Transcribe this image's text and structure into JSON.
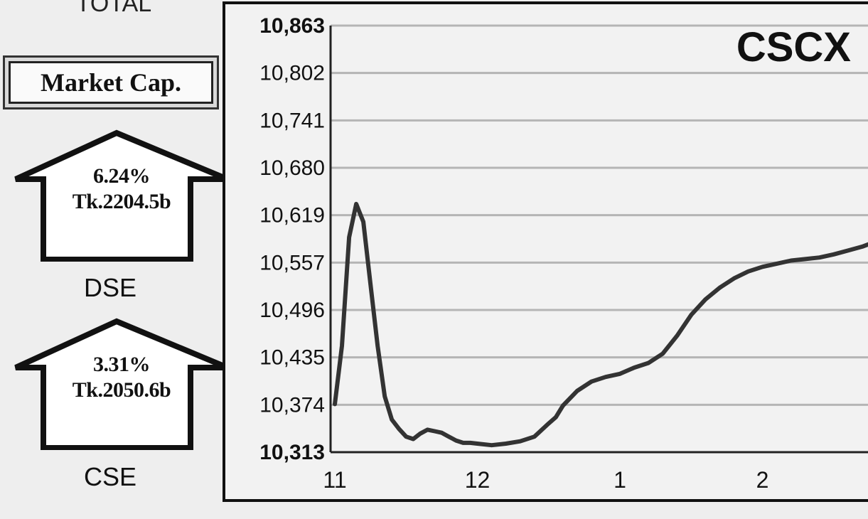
{
  "header": {
    "total_label": "TOTAL"
  },
  "market_cap": {
    "label": "Market Cap."
  },
  "dse": {
    "name": "DSE",
    "change_pct": "6.24%",
    "value": "Tk.2204.5b",
    "direction": "up-arrow-icon"
  },
  "cse": {
    "name": "CSE",
    "change_pct": "3.31%",
    "value": "Tk.2050.6b",
    "direction": "up-arrow-icon"
  },
  "colors": {
    "line": "#333333",
    "grid": "#b5b5b5",
    "frame": "#111111",
    "background": "#eeeeee"
  },
  "chart_data": {
    "type": "line",
    "title": "CSCX",
    "xlabel": "",
    "ylabel": "",
    "x_ticks": [
      "11",
      "12",
      "1",
      "2"
    ],
    "y_ticks": [
      "10,313",
      "10,374",
      "10,435",
      "10,496",
      "10,557",
      "10,619",
      "10,680",
      "10,741",
      "10,802",
      "10,863"
    ],
    "ylim": [
      10313,
      10863
    ],
    "xlim": [
      10.97,
      14.8
    ],
    "grid": true,
    "series": [
      {
        "x": [
          11.0,
          11.05,
          11.1,
          11.15,
          11.2,
          11.25,
          11.3,
          11.35,
          11.4,
          11.45,
          11.5,
          11.55,
          11.6,
          11.65,
          11.7,
          11.75,
          11.8,
          11.85,
          11.9,
          11.95,
          12.0,
          12.1,
          12.2,
          12.3,
          12.4,
          12.5,
          12.55,
          12.6,
          12.7,
          12.8,
          12.9,
          13.0,
          13.1,
          13.2,
          13.3,
          13.4,
          13.5,
          13.55,
          13.6,
          13.7,
          13.8,
          13.9,
          14.0,
          14.1,
          14.2,
          14.3,
          14.4,
          14.5,
          14.6,
          14.7,
          14.8
        ],
        "y": [
          10375,
          10450,
          10590,
          10633,
          10610,
          10530,
          10450,
          10385,
          10355,
          10343,
          10333,
          10330,
          10337,
          10342,
          10340,
          10338,
          10333,
          10328,
          10325,
          10325,
          10324,
          10322,
          10324,
          10327,
          10333,
          10350,
          10358,
          10373,
          10392,
          10404,
          10410,
          10414,
          10422,
          10428,
          10440,
          10463,
          10490,
          10500,
          10510,
          10525,
          10537,
          10546,
          10552,
          10556,
          10560,
          10562,
          10564,
          10568,
          10573,
          10578,
          10585
        ]
      }
    ]
  }
}
